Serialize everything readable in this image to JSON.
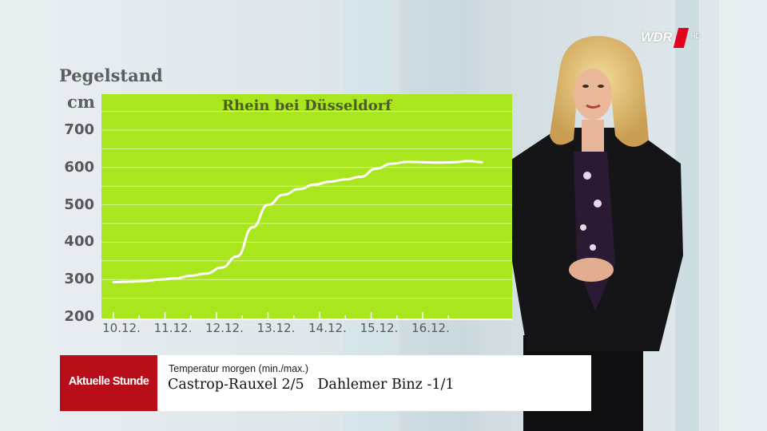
{
  "brand": {
    "colors": {
      "chart_bg": "#a9e61d",
      "brand_red": "#b80e1a",
      "logo_red": "#e3001b"
    }
  },
  "logo": {
    "text": "WDR",
    "suffix": "HD"
  },
  "chart_data": {
    "type": "line",
    "title": "Rhein bei Düsseldorf",
    "ylabel": "Pegelstand",
    "yunit": "cm",
    "ylim": [
      200,
      750
    ],
    "yticks": [
      "200",
      "300",
      "400",
      "500",
      "600",
      "700"
    ],
    "categories": [
      "10.12.",
      "11.12.",
      "12.12.",
      "13.12.",
      "14.12.",
      "15.12.",
      "16.12."
    ],
    "grid": true,
    "series": [
      {
        "x": [
          0,
          0.3,
          0.6,
          0.9,
          1.2,
          1.5,
          1.8,
          2.1,
          2.4,
          2.7,
          3.0,
          3.3,
          3.6,
          3.9,
          4.2,
          4.5,
          4.8,
          5.1,
          5.4,
          5.7,
          6.0,
          6.3,
          6.6,
          6.9,
          7.15
        ],
        "values": [
          293,
          294,
          296,
          300,
          303,
          310,
          316,
          332,
          362,
          440,
          500,
          527,
          542,
          554,
          562,
          568,
          575,
          597,
          610,
          615,
          614,
          613,
          614,
          617,
          614
        ]
      }
    ]
  },
  "lower_third": {
    "brand_label": "Aktuelle Stunde",
    "caption_small": "Temperatur morgen (min./max.)",
    "caption_main": "Castrop-Rauxel 2/5   Dahlemer Binz -1/1"
  }
}
